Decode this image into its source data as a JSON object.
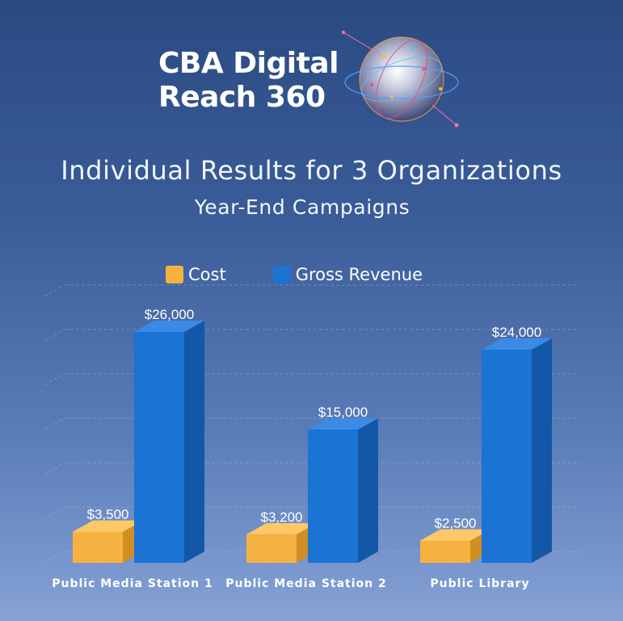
{
  "header": {
    "logo_line1": "CBA Digital",
    "logo_line2": "Reach 360",
    "logo_icon": "globe-network-icon"
  },
  "colors": {
    "cost": "#f5b240",
    "gross_revenue": "#1b73d3"
  },
  "chart_data": {
    "type": "bar",
    "title": "Individual Results for 3 Organizations",
    "subtitle": "Year-End Campaigns",
    "categories": [
      "Public Media Station 1",
      "Public Media Station 2",
      "Public Library"
    ],
    "series": [
      {
        "name": "Cost",
        "values": [
          3500,
          3200,
          2500
        ],
        "labels": [
          "$3,500",
          "$3,200",
          "$2,500"
        ]
      },
      {
        "name": "Gross Revenue",
        "values": [
          26000,
          15000,
          24000
        ],
        "labels": [
          "$26,000",
          "$15,000",
          "$24,000"
        ]
      }
    ],
    "ylim": [
      0,
      30000
    ],
    "grid": true,
    "legend": "top",
    "style": "3d"
  }
}
